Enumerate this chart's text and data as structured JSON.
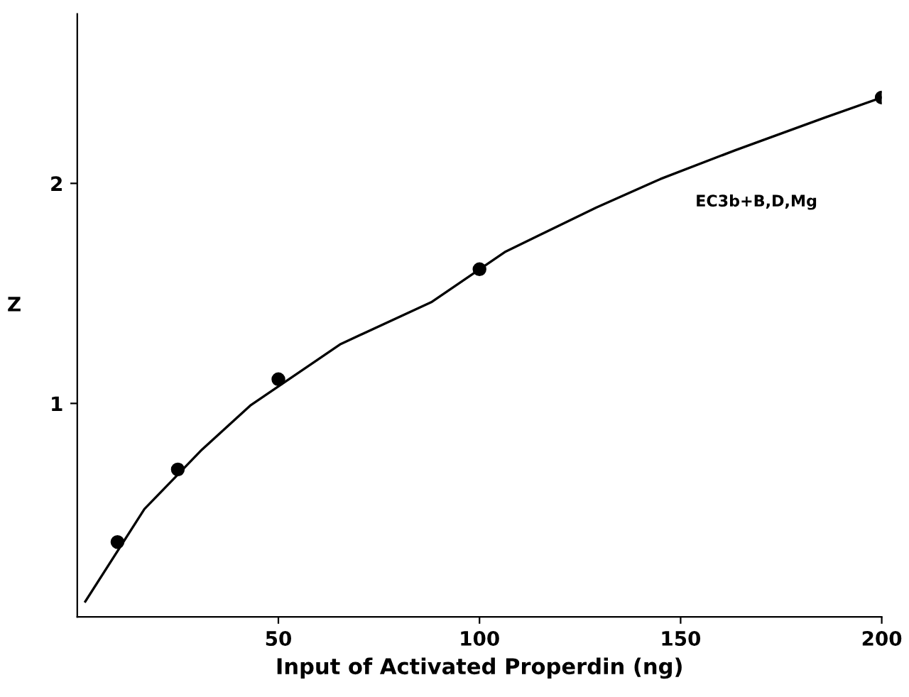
{
  "chart_data": {
    "type": "scatter",
    "xlabel": "Input of Activated Properdin (ng)",
    "ylabel": "Z",
    "xlim": [
      0,
      200
    ],
    "xticks": [
      50,
      100,
      150,
      200
    ],
    "ylim": [
      0.03,
      2.77
    ],
    "yticks": [
      1,
      2
    ],
    "grid": false,
    "marker": "circle",
    "series": [
      {
        "color": "#000000",
        "x": [
          10,
          25,
          50,
          100,
          200
        ],
        "values": [
          0.37,
          0.7,
          1.11,
          1.61,
          2.39
        ]
      },
      {
        "type": "line",
        "color": "#000000",
        "line_style": "solid",
        "marker": "none",
        "x": [
          2,
          16.7,
          31,
          43,
          65.5,
          88,
          106.5,
          129,
          145,
          163.5,
          186,
          200
        ],
        "values": [
          0.1,
          0.52,
          0.79,
          0.99,
          1.27,
          1.46,
          1.69,
          1.89,
          2.02,
          2.15,
          2.3,
          2.39
        ]
      }
    ],
    "annotations": [
      "EC3b+B,D,Mg"
    ]
  }
}
